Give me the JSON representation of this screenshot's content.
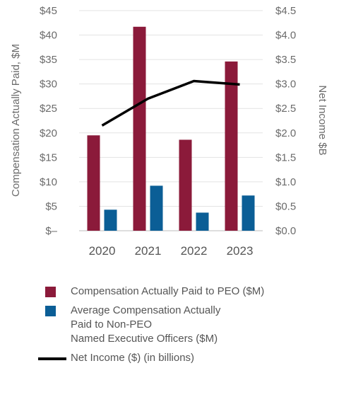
{
  "chart_data": {
    "type": "bar",
    "categories": [
      "2020",
      "2021",
      "2022",
      "2023"
    ],
    "series": [
      {
        "name": "Compensation Actually Paid to PEO ($M)",
        "values": [
          19.5,
          41.7,
          18.6,
          34.6
        ],
        "color": "#8b1a3a",
        "axis": "left"
      },
      {
        "name": "Average Compensation Actually\nPaid to Non-PEO\nNamed Executive Officers ($M)",
        "values": [
          4.3,
          9.2,
          3.7,
          7.2
        ],
        "color": "#0b5e96",
        "axis": "left"
      },
      {
        "name": "Net Income ($) (in billions)",
        "values": [
          2.15,
          2.7,
          3.06,
          2.99
        ],
        "color": "#000000",
        "type": "line",
        "axis": "right"
      }
    ],
    "ylabel": "Compensation Actually Paid, $M",
    "y2label": "Net Income $B",
    "ylim": [
      0,
      45
    ],
    "y2lim": [
      0,
      4.5
    ],
    "yticks": [
      "$–",
      "$5",
      "$10",
      "$15",
      "$20",
      "$25",
      "$30",
      "$35",
      "$40",
      "$45"
    ],
    "y2ticks": [
      "$0.0",
      "$0.5",
      "$1.0",
      "$1.5",
      "$2.0",
      "$2.5",
      "$3.0",
      "$3.5",
      "$4.0",
      "$4.5"
    ],
    "grid": true,
    "legend_position": "bottom"
  }
}
